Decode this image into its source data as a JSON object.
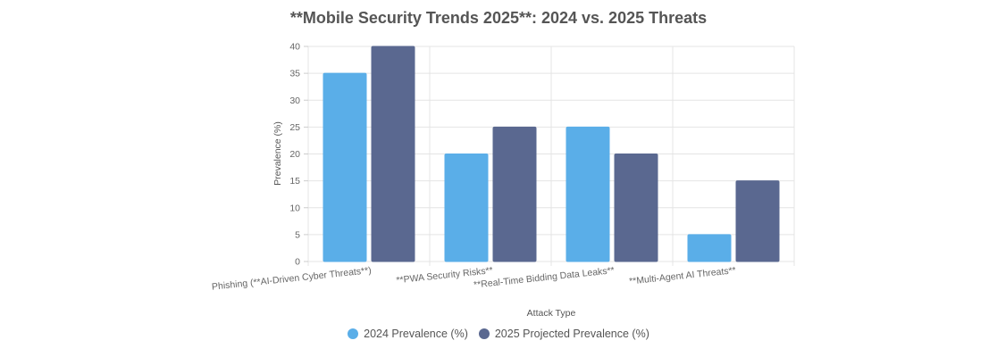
{
  "chart_data": {
    "type": "bar",
    "title": "**Mobile Security Trends 2025**: 2024 vs. 2025 Threats",
    "xlabel": "Attack Type",
    "ylabel": "Prevalence (%)",
    "ylim": [
      0,
      40
    ],
    "yticks": [
      0,
      5,
      10,
      15,
      20,
      25,
      30,
      35,
      40
    ],
    "grid": true,
    "legend_position": "bottom",
    "categories": [
      "Phishing (**AI-Driven Cyber Threats**)",
      "**PWA Security Risks**",
      "**Real-Time Bidding Data Leaks**",
      "**Multi-Agent AI Threats**"
    ],
    "series": [
      {
        "name": "2024 Prevalence (%)",
        "values": [
          35,
          20,
          25,
          5
        ],
        "color": "#5aaee8"
      },
      {
        "name": "2025 Projected Prevalence (%)",
        "values": [
          40,
          25,
          20,
          15
        ],
        "color": "#5a6890"
      }
    ]
  }
}
